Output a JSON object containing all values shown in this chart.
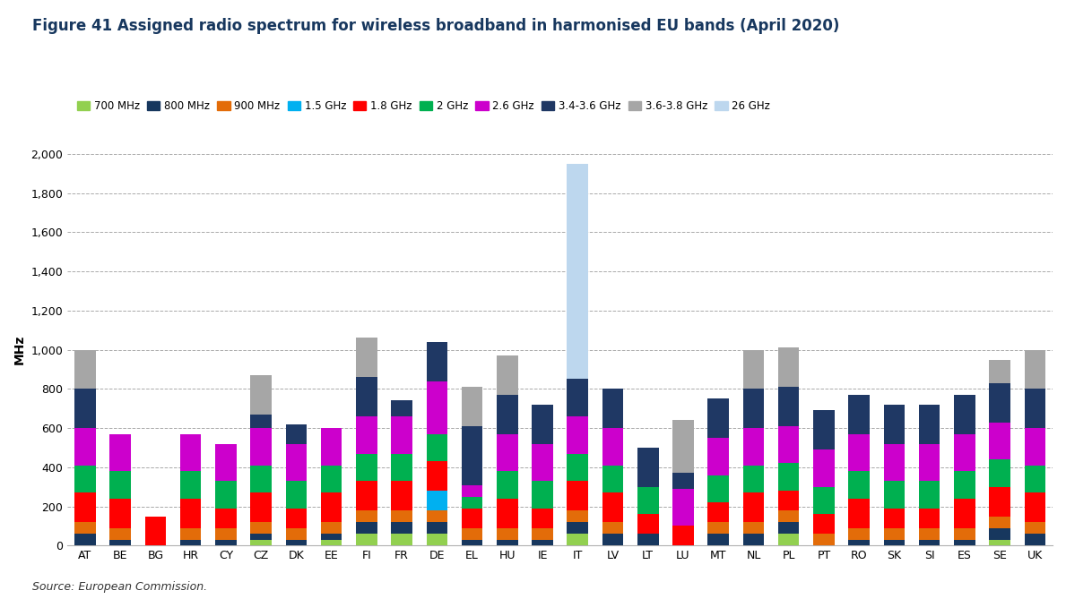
{
  "title": "Figure 41 Assigned radio spectrum for wireless broadband in harmonised EU bands (April 2020)",
  "ylabel": "MHz",
  "source": "Source: European Commission.",
  "ylim": [
    0,
    2000
  ],
  "yticks": [
    0,
    200,
    400,
    600,
    800,
    1000,
    1200,
    1400,
    1600,
    1800,
    2000
  ],
  "ytick_labels": [
    "0",
    "200",
    "400",
    "600",
    "800",
    "1,000",
    "1,200",
    "1,400",
    "1,600",
    "1,800",
    "2,000"
  ],
  "countries": [
    "AT",
    "BE",
    "BG",
    "HR",
    "CY",
    "CZ",
    "DK",
    "EE",
    "FI",
    "FR",
    "DE",
    "EL",
    "HU",
    "IE",
    "IT",
    "LV",
    "LT",
    "LU",
    "MT",
    "NL",
    "PL",
    "PT",
    "RO",
    "SK",
    "SI",
    "ES",
    "SE",
    "UK"
  ],
  "bands": [
    "700 MHz",
    "800 MHz",
    "900 MHz",
    "1.5 GHz",
    "1.8 GHz",
    "2 GHz",
    "2.6 GHz",
    "3.4-3.6 GHz",
    "3.6-3.8 GHz",
    "26 GHz"
  ],
  "colors": [
    "#92d050",
    "#17375e",
    "#e36c09",
    "#00b0f0",
    "#ff0000",
    "#00b050",
    "#cc00cc",
    "#1f3864",
    "#a6a6a6",
    "#bdd7ee"
  ],
  "data": {
    "700 MHz": [
      0,
      0,
      0,
      0,
      0,
      30,
      0,
      30,
      60,
      60,
      60,
      0,
      0,
      0,
      60,
      0,
      0,
      0,
      0,
      0,
      60,
      0,
      0,
      0,
      0,
      0,
      30,
      0
    ],
    "800 MHz": [
      60,
      30,
      0,
      30,
      30,
      30,
      30,
      30,
      60,
      60,
      60,
      30,
      30,
      30,
      60,
      60,
      60,
      0,
      60,
      60,
      60,
      0,
      30,
      30,
      30,
      30,
      60,
      60
    ],
    "900 MHz": [
      60,
      60,
      0,
      60,
      60,
      60,
      60,
      60,
      60,
      60,
      60,
      60,
      60,
      60,
      60,
      60,
      0,
      0,
      60,
      60,
      60,
      60,
      60,
      60,
      60,
      60,
      60,
      60
    ],
    "1.5 GHz": [
      0,
      0,
      0,
      0,
      0,
      0,
      0,
      0,
      0,
      0,
      100,
      0,
      0,
      0,
      0,
      0,
      0,
      0,
      0,
      0,
      0,
      0,
      0,
      0,
      0,
      0,
      0,
      0
    ],
    "1.8 GHz": [
      150,
      150,
      150,
      150,
      100,
      150,
      100,
      150,
      150,
      150,
      150,
      100,
      150,
      100,
      150,
      150,
      100,
      100,
      100,
      150,
      100,
      100,
      150,
      100,
      100,
      150,
      150,
      150
    ],
    "2 GHz": [
      140,
      140,
      0,
      140,
      140,
      140,
      140,
      140,
      140,
      140,
      140,
      60,
      140,
      140,
      140,
      140,
      140,
      0,
      140,
      140,
      140,
      140,
      140,
      140,
      140,
      140,
      140,
      140
    ],
    "2.6 GHz": [
      190,
      190,
      0,
      190,
      190,
      190,
      190,
      190,
      190,
      190,
      270,
      60,
      190,
      190,
      190,
      190,
      0,
      190,
      190,
      190,
      190,
      190,
      190,
      190,
      190,
      190,
      190,
      190
    ],
    "3.4-3.6 GHz": [
      200,
      0,
      0,
      0,
      0,
      70,
      100,
      0,
      200,
      80,
      200,
      300,
      200,
      200,
      190,
      200,
      200,
      80,
      200,
      200,
      200,
      200,
      200,
      200,
      200,
      200,
      200,
      200
    ],
    "3.6-3.8 GHz": [
      200,
      0,
      0,
      0,
      0,
      200,
      0,
      0,
      200,
      0,
      0,
      200,
      200,
      0,
      0,
      0,
      0,
      270,
      0,
      200,
      200,
      0,
      0,
      0,
      0,
      0,
      120,
      200
    ],
    "26 GHz": [
      0,
      0,
      0,
      0,
      0,
      0,
      0,
      0,
      0,
      0,
      0,
      0,
      0,
      0,
      1100,
      0,
      0,
      0,
      0,
      0,
      0,
      0,
      0,
      0,
      0,
      0,
      0,
      0
    ]
  },
  "background_color": "#ffffff",
  "title_color": "#17375e",
  "title_fontsize": 12,
  "legend_fontsize": 8.5,
  "tick_fontsize": 9,
  "source_fontsize": 9
}
